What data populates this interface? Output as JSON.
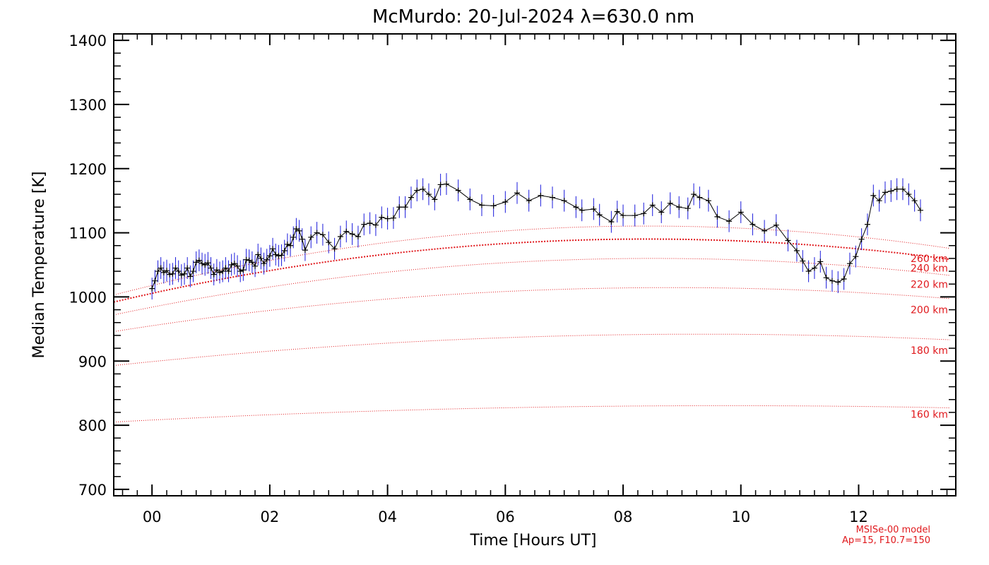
{
  "chart_data": {
    "type": "line",
    "title": "McMurdo: 20-Jul-2024 λ=630.0 nm",
    "xlabel": "Time [Hours UT]",
    "ylabel": "Median Temperature [K]",
    "xlim": [
      -0.65,
      13.65
    ],
    "ylim": [
      690,
      1410
    ],
    "x_ticks": [
      0,
      2,
      4,
      6,
      8,
      10,
      12
    ],
    "x_tick_labels": [
      "00",
      "02",
      "04",
      "06",
      "08",
      "10",
      "12"
    ],
    "y_ticks": [
      700,
      800,
      900,
      1000,
      1100,
      1200,
      1300,
      1400
    ],
    "y_tick_labels": [
      "700",
      "800",
      "900",
      "1000",
      "1100",
      "1200",
      "1300",
      "1400"
    ],
    "grid": false,
    "colors": {
      "data_line": "#000000",
      "error_bars": "#1a1adc",
      "model_curves": "#e0181c"
    },
    "series": [
      {
        "values": [
          [
            0.0,
            1013
          ],
          [
            0.05,
            1025
          ],
          [
            0.1,
            1040
          ],
          [
            0.15,
            1045
          ],
          [
            0.2,
            1038
          ],
          [
            0.25,
            1041
          ],
          [
            0.3,
            1035
          ],
          [
            0.35,
            1036
          ],
          [
            0.4,
            1045
          ],
          [
            0.45,
            1040
          ],
          [
            0.5,
            1034
          ],
          [
            0.55,
            1036
          ],
          [
            0.6,
            1045
          ],
          [
            0.65,
            1032
          ],
          [
            0.7,
            1040
          ],
          [
            0.75,
            1054
          ],
          [
            0.8,
            1057
          ],
          [
            0.85,
            1052
          ],
          [
            0.9,
            1050
          ],
          [
            0.95,
            1053
          ],
          [
            1.0,
            1045
          ],
          [
            1.05,
            1035
          ],
          [
            1.1,
            1042
          ],
          [
            1.15,
            1038
          ],
          [
            1.2,
            1040
          ],
          [
            1.25,
            1045
          ],
          [
            1.3,
            1040
          ],
          [
            1.35,
            1050
          ],
          [
            1.4,
            1052
          ],
          [
            1.45,
            1048
          ],
          [
            1.5,
            1040
          ],
          [
            1.55,
            1042
          ],
          [
            1.6,
            1058
          ],
          [
            1.65,
            1057
          ],
          [
            1.7,
            1054
          ],
          [
            1.75,
            1048
          ],
          [
            1.8,
            1066
          ],
          [
            1.85,
            1060
          ],
          [
            1.9,
            1052
          ],
          [
            1.95,
            1058
          ],
          [
            2.0,
            1064
          ],
          [
            2.05,
            1075
          ],
          [
            2.1,
            1066
          ],
          [
            2.15,
            1064
          ],
          [
            2.2,
            1065
          ],
          [
            2.25,
            1072
          ],
          [
            2.3,
            1082
          ],
          [
            2.35,
            1080
          ],
          [
            2.4,
            1093
          ],
          [
            2.45,
            1106
          ],
          [
            2.5,
            1103
          ],
          [
            2.55,
            1090
          ],
          [
            2.6,
            1073
          ],
          [
            2.7,
            1093
          ],
          [
            2.8,
            1100
          ],
          [
            2.9,
            1097
          ],
          [
            3.0,
            1085
          ],
          [
            3.1,
            1075
          ],
          [
            3.2,
            1094
          ],
          [
            3.3,
            1102
          ],
          [
            3.4,
            1098
          ],
          [
            3.5,
            1094
          ],
          [
            3.6,
            1113
          ],
          [
            3.7,
            1115
          ],
          [
            3.8,
            1112
          ],
          [
            3.9,
            1124
          ],
          [
            4.0,
            1122
          ],
          [
            4.1,
            1123
          ],
          [
            4.2,
            1140
          ],
          [
            4.3,
            1140
          ],
          [
            4.4,
            1155
          ],
          [
            4.5,
            1166
          ],
          [
            4.6,
            1168
          ],
          [
            4.7,
            1160
          ],
          [
            4.8,
            1152
          ],
          [
            4.9,
            1175
          ],
          [
            5.0,
            1176
          ],
          [
            5.2,
            1166
          ],
          [
            5.4,
            1152
          ],
          [
            5.6,
            1143
          ],
          [
            5.8,
            1142
          ],
          [
            6.0,
            1148
          ],
          [
            6.2,
            1162
          ],
          [
            6.4,
            1150
          ],
          [
            6.6,
            1158
          ],
          [
            6.8,
            1155
          ],
          [
            7.0,
            1150
          ],
          [
            7.2,
            1140
          ],
          [
            7.3,
            1135
          ],
          [
            7.5,
            1137
          ],
          [
            7.6,
            1128
          ],
          [
            7.8,
            1117
          ],
          [
            7.9,
            1133
          ],
          [
            8.0,
            1127
          ],
          [
            8.2,
            1127
          ],
          [
            8.35,
            1130
          ],
          [
            8.5,
            1143
          ],
          [
            8.65,
            1132
          ],
          [
            8.8,
            1146
          ],
          [
            8.95,
            1140
          ],
          [
            9.1,
            1138
          ],
          [
            9.2,
            1160
          ],
          [
            9.3,
            1155
          ],
          [
            9.45,
            1150
          ],
          [
            9.6,
            1125
          ],
          [
            9.8,
            1118
          ],
          [
            10.0,
            1132
          ],
          [
            10.2,
            1113
          ],
          [
            10.4,
            1103
          ],
          [
            10.6,
            1112
          ],
          [
            10.8,
            1088
          ],
          [
            10.95,
            1072
          ],
          [
            11.05,
            1056
          ],
          [
            11.15,
            1040
          ],
          [
            11.25,
            1045
          ],
          [
            11.35,
            1055
          ],
          [
            11.45,
            1030
          ],
          [
            11.55,
            1025
          ],
          [
            11.65,
            1023
          ],
          [
            11.75,
            1028
          ],
          [
            11.85,
            1052
          ],
          [
            11.95,
            1063
          ],
          [
            12.05,
            1090
          ],
          [
            12.15,
            1113
          ],
          [
            12.25,
            1158
          ],
          [
            12.35,
            1150
          ],
          [
            12.45,
            1163
          ],
          [
            12.55,
            1165
          ],
          [
            12.65,
            1168
          ],
          [
            12.75,
            1168
          ],
          [
            12.85,
            1160
          ],
          [
            12.95,
            1150
          ],
          [
            13.05,
            1135
          ]
        ],
        "error": 17
      }
    ],
    "model": {
      "label_line1": "MSISe-00 model",
      "label_line2": "Ap=15, F10.7=150",
      "curves": [
        {
          "name": "160 km",
          "values": [
            [
              -0.65,
              805
            ],
            [
              6.5,
              828
            ],
            [
              13.6,
              827
            ]
          ]
        },
        {
          "name": "180 km",
          "values": [
            [
              -0.65,
              893
            ],
            [
              6.5,
              938
            ],
            [
              13.6,
              933
            ]
          ]
        },
        {
          "name": "200 km",
          "values": [
            [
              -0.65,
              946
            ],
            [
              8.0,
              1014
            ],
            [
              13.6,
              997
            ]
          ]
        },
        {
          "name": "220 km",
          "values": [
            [
              -0.65,
              972
            ],
            [
              8.5,
              1060
            ],
            [
              13.6,
              1033
            ]
          ]
        },
        {
          "name": "240 km",
          "values": [
            [
              -0.65,
              992
            ],
            [
              8.8,
              1090
            ],
            [
              13.6,
              1058
            ]
          ]
        },
        {
          "name": "260 km",
          "values": [
            [
              -0.65,
              1003
            ],
            [
              9.0,
              1110
            ],
            [
              13.6,
              1075
            ]
          ]
        }
      ],
      "label_x": 12.9,
      "label_values": [
        817,
        917,
        980,
        1020,
        1045,
        1060
      ]
    }
  }
}
